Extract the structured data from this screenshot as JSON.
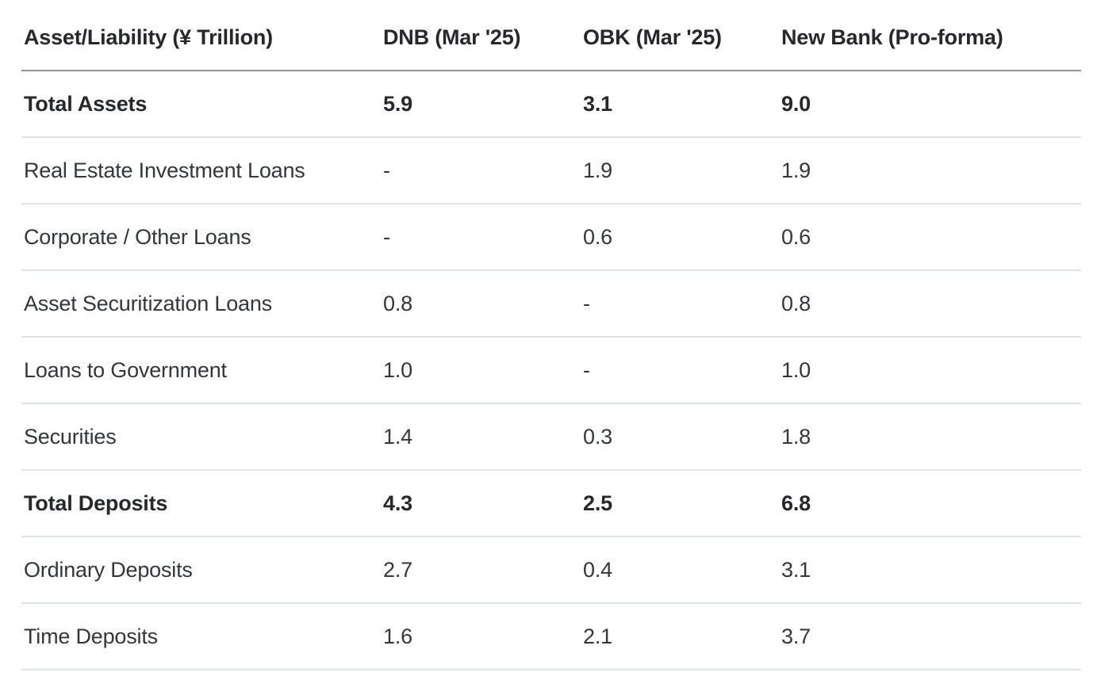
{
  "colors": {
    "background": "#ffffff",
    "text_regular": "#33363c",
    "text_bold": "#26282b",
    "header_rule": "#8e9298",
    "row_rule": "#dde2eb"
  },
  "table": {
    "columns": [
      {
        "label": "Asset/Liability (¥ Trillion)"
      },
      {
        "label": "DNB (Mar '25)"
      },
      {
        "label": "OBK (Mar '25)"
      },
      {
        "label": "New Bank (Pro-forma)"
      }
    ],
    "rows": [
      {
        "label": "Total Assets",
        "values": [
          "5.9",
          "3.1",
          "9.0"
        ],
        "bold": true
      },
      {
        "label": "Real Estate Investment Loans",
        "values": [
          "-",
          "1.9",
          "1.9"
        ],
        "bold": false
      },
      {
        "label": "Corporate / Other Loans",
        "values": [
          "-",
          "0.6",
          "0.6"
        ],
        "bold": false
      },
      {
        "label": "Asset Securitization Loans",
        "values": [
          "0.8",
          "-",
          "0.8"
        ],
        "bold": false
      },
      {
        "label": "Loans to Government",
        "values": [
          "1.0",
          "-",
          "1.0"
        ],
        "bold": false
      },
      {
        "label": "Securities",
        "values": [
          "1.4",
          "0.3",
          "1.8"
        ],
        "bold": false
      },
      {
        "label": "Total Deposits",
        "values": [
          "4.3",
          "2.5",
          "6.8"
        ],
        "bold": true
      },
      {
        "label": "Ordinary Deposits",
        "values": [
          "2.7",
          "0.4",
          "3.1"
        ],
        "bold": false
      },
      {
        "label": "Time Deposits",
        "values": [
          "1.6",
          "2.1",
          "3.7"
        ],
        "bold": false
      }
    ]
  },
  "chart_data": {
    "type": "table",
    "title": "",
    "columns": [
      "Asset/Liability (¥ Trillion)",
      "DNB (Mar '25)",
      "OBK (Mar '25)",
      "New Bank (Pro-forma)"
    ],
    "rows": [
      [
        "Total Assets",
        "5.9",
        "3.1",
        "9.0"
      ],
      [
        "Real Estate Investment Loans",
        "-",
        "1.9",
        "1.9"
      ],
      [
        "Corporate / Other Loans",
        "-",
        "0.6",
        "0.6"
      ],
      [
        "Asset Securitization Loans",
        "0.8",
        "-",
        "0.8"
      ],
      [
        "Loans to Government",
        "1.0",
        "-",
        "1.0"
      ],
      [
        "Securities",
        "1.4",
        "0.3",
        "1.8"
      ],
      [
        "Total Deposits",
        "4.3",
        "2.5",
        "6.8"
      ],
      [
        "Ordinary Deposits",
        "2.7",
        "0.4",
        "3.1"
      ],
      [
        "Time Deposits",
        "1.6",
        "2.1",
        "3.7"
      ]
    ],
    "bold_rows": [
      "Total Assets",
      "Total Deposits"
    ],
    "units": "¥ Trillion"
  }
}
